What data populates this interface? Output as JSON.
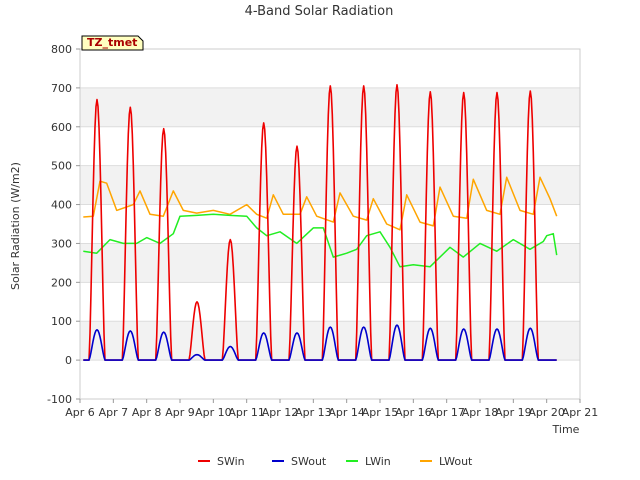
{
  "chart_data": {
    "type": "line",
    "title": "4-Band Solar Radiation",
    "xlabel": "Time",
    "ylabel": "Solar Radiation (W/m2)",
    "xlim": [
      "Apr 6",
      "Apr 21"
    ],
    "ylim": [
      -100,
      800
    ],
    "yticks": [
      -100,
      0,
      100,
      200,
      300,
      400,
      500,
      600,
      700,
      800
    ],
    "xticks": [
      "Apr 6",
      "Apr 7",
      "Apr 8",
      "Apr 9",
      "Apr 10",
      "Apr 11",
      "Apr 12",
      "Apr 13",
      "Apr 14",
      "Apr 15",
      "Apr 16",
      "Apr 17",
      "Apr 18",
      "Apr 19",
      "Apr 20",
      "Apr 21"
    ],
    "grid": true,
    "background_bands": true,
    "legend": "bottom",
    "annotation": "TZ_tmet",
    "x_start_day": 6,
    "x_end_day": 21,
    "series": [
      {
        "name": "SWin",
        "color": "#ee0000",
        "daily_peaks": [
          {
            "date": "Apr 6",
            "peak": 670
          },
          {
            "date": "Apr 7",
            "peak": 650
          },
          {
            "date": "Apr 8",
            "peak": 595
          },
          {
            "date": "Apr 9",
            "peak": 150
          },
          {
            "date": "Apr 10",
            "peak": 310
          },
          {
            "date": "Apr 11",
            "peak": 610
          },
          {
            "date": "Apr 12",
            "peak": 550
          },
          {
            "date": "Apr 13",
            "peak": 705
          },
          {
            "date": "Apr 14",
            "peak": 705
          },
          {
            "date": "Apr 15",
            "peak": 708
          },
          {
            "date": "Apr 16",
            "peak": 690
          },
          {
            "date": "Apr 17",
            "peak": 688
          },
          {
            "date": "Apr 18",
            "peak": 688
          },
          {
            "date": "Apr 19",
            "peak": 692
          }
        ]
      },
      {
        "name": "SWout",
        "color": "#0000cc",
        "daily_peaks": [
          {
            "date": "Apr 6",
            "peak": 78
          },
          {
            "date": "Apr 7",
            "peak": 75
          },
          {
            "date": "Apr 8",
            "peak": 72
          },
          {
            "date": "Apr 9",
            "peak": 14
          },
          {
            "date": "Apr 10",
            "peak": 35
          },
          {
            "date": "Apr 11",
            "peak": 70
          },
          {
            "date": "Apr 12",
            "peak": 70
          },
          {
            "date": "Apr 13",
            "peak": 85
          },
          {
            "date": "Apr 14",
            "peak": 85
          },
          {
            "date": "Apr 15",
            "peak": 90
          },
          {
            "date": "Apr 16",
            "peak": 82
          },
          {
            "date": "Apr 17",
            "peak": 80
          },
          {
            "date": "Apr 18",
            "peak": 80
          },
          {
            "date": "Apr 19",
            "peak": 82
          }
        ]
      },
      {
        "name": "LWin",
        "color": "#22ee22",
        "points": [
          {
            "x": "Apr 6.1",
            "y": 280
          },
          {
            "x": "Apr 6.5",
            "y": 275
          },
          {
            "x": "Apr 6.9",
            "y": 310
          },
          {
            "x": "Apr 7.3",
            "y": 300
          },
          {
            "x": "Apr 7.7",
            "y": 300
          },
          {
            "x": "Apr 8.0",
            "y": 315
          },
          {
            "x": "Apr 8.4",
            "y": 300
          },
          {
            "x": "Apr 8.8",
            "y": 325
          },
          {
            "x": "Apr 9.0",
            "y": 370
          },
          {
            "x": "Apr 9.5",
            "y": 372
          },
          {
            "x": "Apr 10.0",
            "y": 375
          },
          {
            "x": "Apr 10.5",
            "y": 372
          },
          {
            "x": "Apr 11.0",
            "y": 370
          },
          {
            "x": "Apr 11.3",
            "y": 340
          },
          {
            "x": "Apr 11.6",
            "y": 320
          },
          {
            "x": "Apr 12.0",
            "y": 330
          },
          {
            "x": "Apr 12.5",
            "y": 300
          },
          {
            "x": "Apr 13.0",
            "y": 340
          },
          {
            "x": "Apr 13.3",
            "y": 340
          },
          {
            "x": "Apr 13.6",
            "y": 265
          },
          {
            "x": "Apr 14.0",
            "y": 275
          },
          {
            "x": "Apr 14.3",
            "y": 285
          },
          {
            "x": "Apr 14.6",
            "y": 320
          },
          {
            "x": "Apr 15.0",
            "y": 330
          },
          {
            "x": "Apr 15.3",
            "y": 290
          },
          {
            "x": "Apr 15.6",
            "y": 240
          },
          {
            "x": "Apr 16.0",
            "y": 245
          },
          {
            "x": "Apr 16.5",
            "y": 240
          },
          {
            "x": "Apr 16.8",
            "y": 265
          },
          {
            "x": "Apr 17.1",
            "y": 290
          },
          {
            "x": "Apr 17.5",
            "y": 265
          },
          {
            "x": "Apr 18.0",
            "y": 300
          },
          {
            "x": "Apr 18.5",
            "y": 280
          },
          {
            "x": "Apr 19.0",
            "y": 310
          },
          {
            "x": "Apr 19.5",
            "y": 285
          },
          {
            "x": "Apr 19.9",
            "y": 305
          },
          {
            "x": "Apr 20.0",
            "y": 320
          },
          {
            "x": "Apr 20.2",
            "y": 325
          },
          {
            "x": "Apr 20.3",
            "y": 270
          }
        ]
      },
      {
        "name": "LWout",
        "color": "#ffa500",
        "points": [
          {
            "x": "Apr 6.1",
            "y": 368
          },
          {
            "x": "Apr 6.4",
            "y": 370
          },
          {
            "x": "Apr 6.6",
            "y": 460
          },
          {
            "x": "Apr 6.8",
            "y": 455
          },
          {
            "x": "Apr 7.1",
            "y": 385
          },
          {
            "x": "Apr 7.6",
            "y": 400
          },
          {
            "x": "Apr 7.8",
            "y": 435
          },
          {
            "x": "Apr 8.1",
            "y": 375
          },
          {
            "x": "Apr 8.5",
            "y": 370
          },
          {
            "x": "Apr 8.8",
            "y": 435
          },
          {
            "x": "Apr 9.1",
            "y": 385
          },
          {
            "x": "Apr 9.5",
            "y": 378
          },
          {
            "x": "Apr 10.0",
            "y": 385
          },
          {
            "x": "Apr 10.5",
            "y": 375
          },
          {
            "x": "Apr 11.0",
            "y": 400
          },
          {
            "x": "Apr 11.3",
            "y": 375
          },
          {
            "x": "Apr 11.6",
            "y": 365
          },
          {
            "x": "Apr 11.8",
            "y": 425
          },
          {
            "x": "Apr 12.1",
            "y": 375
          },
          {
            "x": "Apr 12.6",
            "y": 375
          },
          {
            "x": "Apr 12.8",
            "y": 420
          },
          {
            "x": "Apr 13.1",
            "y": 370
          },
          {
            "x": "Apr 13.6",
            "y": 355
          },
          {
            "x": "Apr 13.8",
            "y": 430
          },
          {
            "x": "Apr 14.2",
            "y": 370
          },
          {
            "x": "Apr 14.6",
            "y": 360
          },
          {
            "x": "Apr 14.8",
            "y": 415
          },
          {
            "x": "Apr 15.2",
            "y": 350
          },
          {
            "x": "Apr 15.6",
            "y": 335
          },
          {
            "x": "Apr 15.8",
            "y": 425
          },
          {
            "x": "Apr 16.2",
            "y": 355
          },
          {
            "x": "Apr 16.6",
            "y": 345
          },
          {
            "x": "Apr 16.8",
            "y": 445
          },
          {
            "x": "Apr 17.2",
            "y": 370
          },
          {
            "x": "Apr 17.6",
            "y": 365
          },
          {
            "x": "Apr 17.8",
            "y": 465
          },
          {
            "x": "Apr 18.2",
            "y": 385
          },
          {
            "x": "Apr 18.6",
            "y": 375
          },
          {
            "x": "Apr 18.8",
            "y": 470
          },
          {
            "x": "Apr 19.2",
            "y": 385
          },
          {
            "x": "Apr 19.6",
            "y": 375
          },
          {
            "x": "Apr 19.8",
            "y": 470
          },
          {
            "x": "Apr 20.1",
            "y": 415
          },
          {
            "x": "Apr 20.3",
            "y": 370
          }
        ]
      }
    ]
  }
}
